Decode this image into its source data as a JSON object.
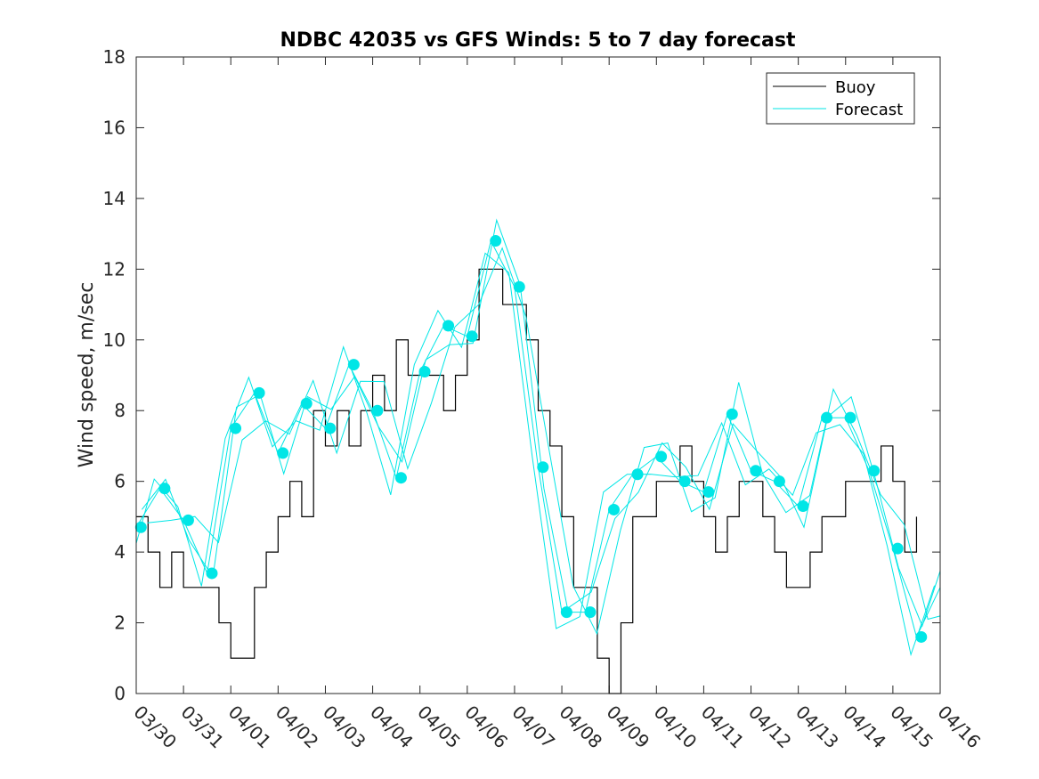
{
  "chart_data": {
    "type": "line",
    "title": "NDBC 42035 vs GFS Winds: 5 to 7 day forecast",
    "xlabel": "",
    "ylabel": "Wind speed, m/sec",
    "xlim_days": [
      0,
      17
    ],
    "ylim": [
      0,
      18
    ],
    "x_tick_labels": [
      "03/30",
      "03/31",
      "04/01",
      "04/02",
      "04/03",
      "04/04",
      "04/05",
      "04/06",
      "04/07",
      "04/08",
      "04/09",
      "04/10",
      "04/11",
      "04/12",
      "04/13",
      "04/14",
      "04/15",
      "04/16"
    ],
    "y_ticks": [
      0,
      2,
      4,
      6,
      8,
      10,
      12,
      14,
      16,
      18
    ],
    "legend": {
      "position": "top-right",
      "entries": [
        {
          "name": "Buoy",
          "color": "#000000"
        },
        {
          "name": "Forecast",
          "color": "#00e6e6"
        }
      ]
    },
    "series": [
      {
        "name": "Buoy",
        "color": "#000000",
        "x": [
          0.0,
          0.25,
          0.5,
          0.75,
          1.0,
          1.25,
          1.5,
          1.75,
          2.0,
          2.25,
          2.5,
          2.75,
          3.0,
          3.25,
          3.5,
          3.75,
          4.0,
          4.25,
          4.5,
          4.75,
          5.0,
          5.25,
          5.5,
          5.75,
          6.0,
          6.25,
          6.5,
          6.75,
          7.0,
          7.25,
          7.5,
          7.75,
          8.0,
          8.25,
          8.5,
          8.75,
          9.0,
          9.25,
          9.5,
          9.75,
          10.0,
          10.25,
          10.5,
          10.75,
          11.0,
          11.25,
          11.5,
          11.75,
          12.0,
          12.25,
          12.5,
          12.75,
          13.0,
          13.25,
          13.5,
          13.75,
          14.0,
          14.25,
          14.5,
          14.75,
          15.0,
          15.25,
          15.5,
          15.75,
          16.0,
          16.25,
          16.5
        ],
        "values": [
          5,
          4,
          3,
          4,
          3,
          3,
          3,
          2,
          1,
          1,
          3,
          4,
          5,
          6,
          5,
          8,
          7,
          8,
          7,
          8,
          9,
          8,
          10,
          9,
          9,
          9,
          8,
          9,
          10,
          12,
          12,
          11,
          11,
          10,
          8,
          7,
          5,
          3,
          3,
          1,
          0,
          2,
          5,
          5,
          6,
          6,
          7,
          6,
          5,
          4,
          5,
          6,
          6,
          5,
          4,
          3,
          3,
          4,
          5,
          5,
          6,
          6,
          6,
          7,
          6,
          4,
          5
        ]
      },
      {
        "name": "Forecast",
        "color": "#00e6e6",
        "x": [
          0.0,
          0.5,
          1.0,
          1.5,
          2.0,
          2.5,
          3.0,
          3.5,
          4.0,
          4.5,
          5.0,
          5.5,
          6.0,
          6.5,
          7.0,
          7.5,
          8.0,
          8.5,
          9.0,
          9.5,
          10.0,
          10.5,
          11.0,
          11.5,
          12.0,
          12.5,
          13.0,
          13.5,
          14.0,
          14.5,
          15.0,
          15.5,
          16.0,
          16.5,
          17.0
        ],
        "values": [
          4.7,
          5.8,
          4.9,
          3.4,
          7.5,
          8.5,
          6.8,
          8.2,
          7.5,
          9.3,
          8.0,
          6.1,
          9.1,
          10.4,
          10.1,
          12.8,
          11.5,
          6.4,
          2.3,
          2.3,
          5.2,
          6.2,
          6.7,
          6.0,
          5.7,
          7.9,
          6.3,
          6.0,
          5.3,
          7.8,
          7.8,
          6.3,
          4.1,
          1.6,
          3.0
        ]
      }
    ],
    "forecast_markers": {
      "x": [
        0.1,
        0.6,
        1.1,
        1.6,
        2.1,
        2.6,
        3.1,
        3.6,
        4.1,
        4.6,
        5.1,
        5.6,
        6.1,
        6.6,
        7.1,
        7.6,
        8.1,
        8.6,
        9.1,
        9.6,
        10.1,
        10.6,
        11.1,
        11.6,
        12.1,
        12.6,
        13.1,
        13.6,
        14.1,
        14.6,
        15.1,
        15.6,
        16.1,
        16.6
      ],
      "values": [
        4.7,
        5.8,
        4.9,
        3.4,
        7.5,
        8.5,
        6.8,
        8.2,
        7.5,
        9.3,
        8.0,
        6.1,
        9.1,
        10.4,
        10.1,
        12.8,
        11.5,
        6.4,
        2.3,
        2.3,
        5.2,
        6.2,
        6.7,
        6.0,
        5.7,
        7.9,
        6.3,
        6.0,
        5.3,
        7.8,
        7.8,
        6.3,
        4.1,
        1.6
      ]
    }
  }
}
